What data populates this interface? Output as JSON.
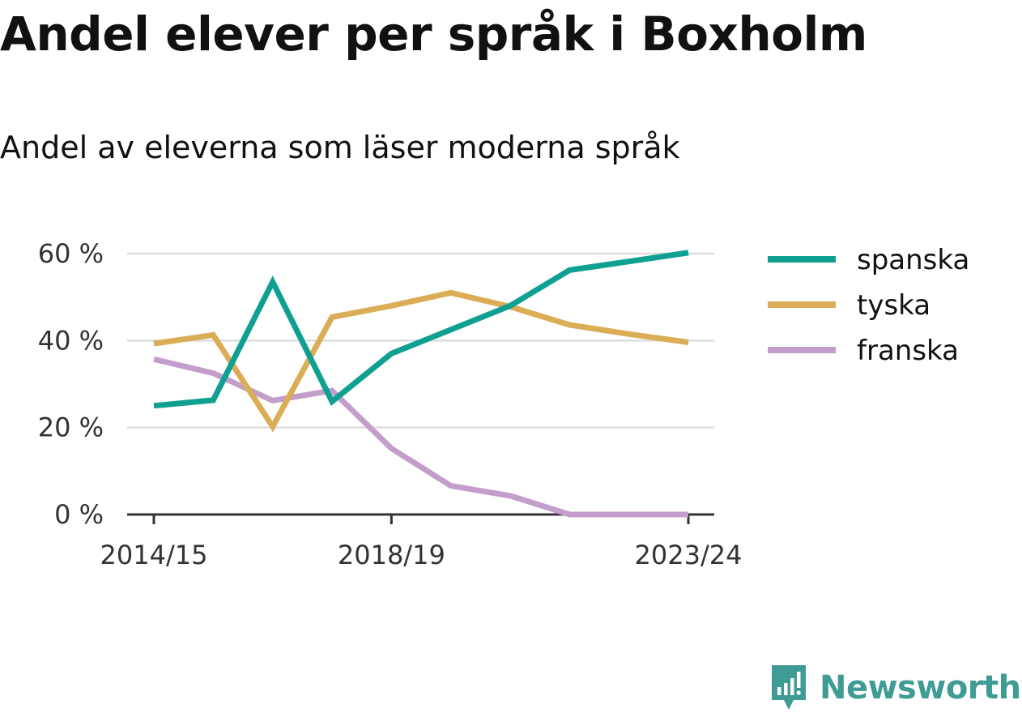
{
  "header": {
    "title": "Andel elever per språk i Boxholm",
    "subtitle": "Andel av eleverna som läser moderna språk"
  },
  "brand": {
    "name": "Newsworthy",
    "icon": "newsworthy-logo-icon",
    "color": "#3f9c95"
  },
  "chart_data": {
    "type": "line",
    "x": [
      "2014/15",
      "2015/16",
      "2016/17",
      "2017/18",
      "2018/19",
      "2019/20",
      "2020/21",
      "2021/22",
      "2022/23",
      "2023/24"
    ],
    "x_tick_labels": [
      "2014/15",
      "2018/19",
      "2023/24"
    ],
    "y_ticks": [
      0,
      20,
      40,
      60
    ],
    "y_tick_labels": [
      "0 %",
      "20 %",
      "40 %",
      "60 %"
    ],
    "ylim": [
      0,
      60
    ],
    "grid": true,
    "legend_position": "right",
    "series": [
      {
        "name": "spanska",
        "color": "#0fa092",
        "values": [
          25,
          26.3,
          53.5,
          26,
          37,
          42.5,
          48,
          56.2,
          58.2,
          60.2
        ]
      },
      {
        "name": "tyska",
        "color": "#dbad56",
        "values": [
          39.3,
          41.3,
          20.2,
          45.4,
          48,
          51,
          47.8,
          43.6,
          41.5,
          39.6
        ]
      },
      {
        "name": "franska",
        "color": "#c49ecb",
        "values": [
          35.7,
          32.5,
          26.2,
          28.5,
          15.2,
          6.6,
          4.3,
          0,
          0,
          0
        ]
      }
    ]
  }
}
